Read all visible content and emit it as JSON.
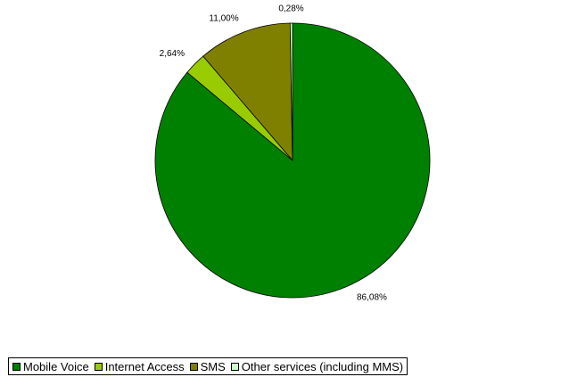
{
  "chart_data": {
    "type": "pie",
    "categories": [
      "Mobile Voice",
      "Internet Access",
      "SMS",
      "Other services (including MMS)"
    ],
    "values": [
      86.08,
      2.64,
      11.0,
      0.28
    ],
    "labels": [
      "86,08%",
      "2,64%",
      "11,00%",
      "0,28%"
    ],
    "colors": [
      "#008000",
      "#99CC00",
      "#808000",
      "#CCFFCC"
    ],
    "legend_position": "bottom"
  }
}
